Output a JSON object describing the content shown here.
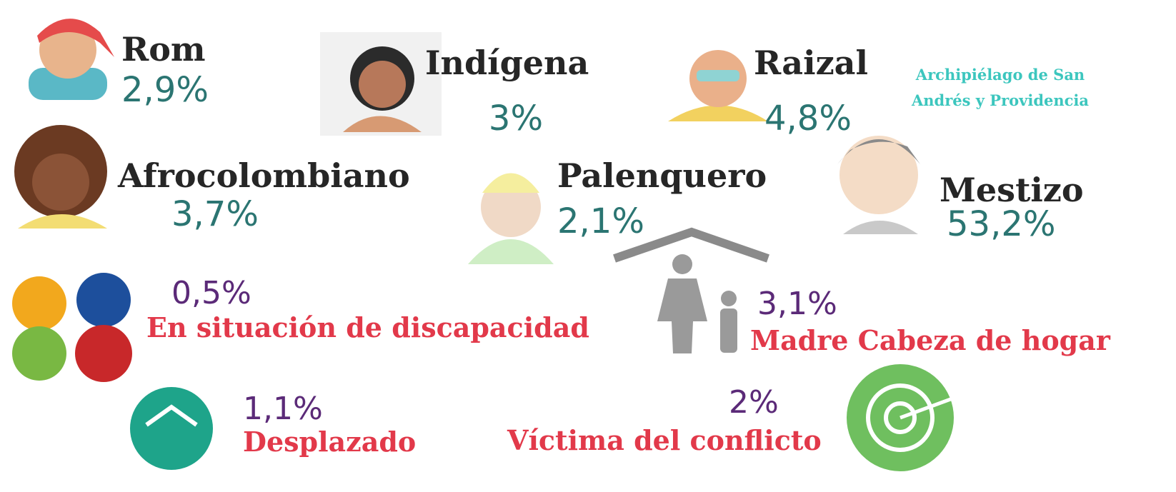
{
  "ethnic_groups": [
    {
      "label": "Rom",
      "value": "2,9%"
    },
    {
      "label": "Indígena",
      "value": "3%"
    },
    {
      "label": "Raizal",
      "value": "4,8%",
      "note_lines": [
        "Archipiélago de San",
        "Andrés y Providencia"
      ]
    },
    {
      "label": "Afrocolombiano",
      "value": "3,7%"
    },
    {
      "label": "Palenquero",
      "value": "2,1%"
    },
    {
      "label": "Mestizo",
      "value": "53,2%"
    }
  ],
  "conditions": [
    {
      "value": "0,5%",
      "label": "En situación de discapacidad"
    },
    {
      "value": "3,1%",
      "label": "Madre Cabeza de hogar"
    },
    {
      "value": "1,1%",
      "label": "Desplazado"
    },
    {
      "value": "2%",
      "label": "Víctima del conflicto"
    }
  ]
}
